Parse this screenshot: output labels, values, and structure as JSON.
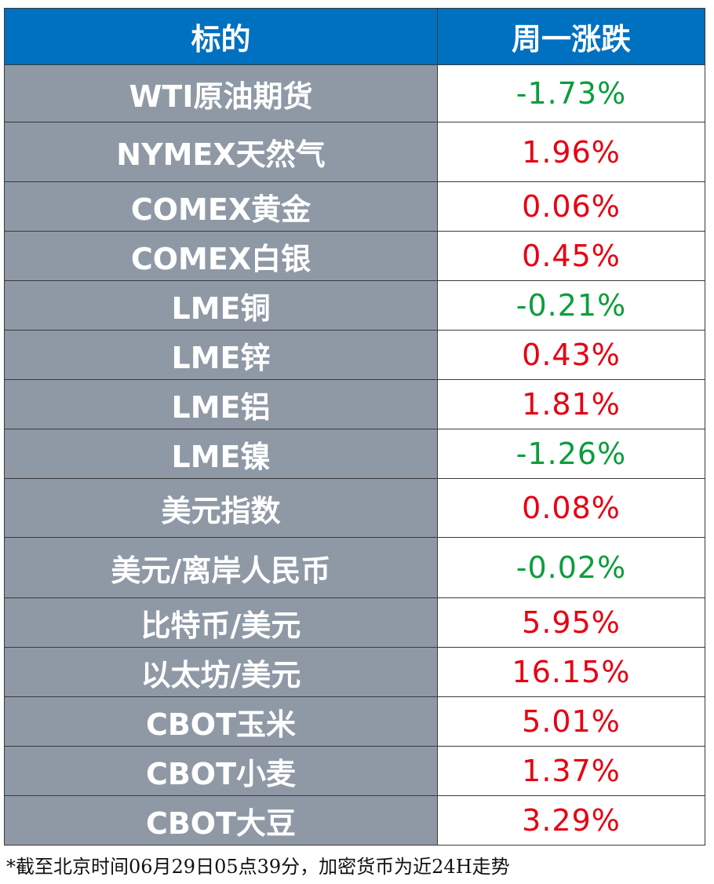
{
  "table": {
    "header": [
      "标的",
      "周一涨跌"
    ],
    "rows": [
      [
        "WTI原油期货",
        "-1.73%"
      ],
      [
        "NYMEX天然气",
        "1.96%"
      ],
      [
        "COMEX黄金",
        "0.06%"
      ],
      [
        "COMEX白银",
        "0.45%"
      ],
      [
        "LME铜",
        "-0.21%"
      ],
      [
        "LME锌",
        "0.43%"
      ],
      [
        "LME铝",
        "1.81%"
      ],
      [
        "LME镍",
        "-1.26%"
      ],
      [
        "美元指数",
        "0.08%"
      ],
      [
        "美元/离岸人民币",
        "-0.02%"
      ],
      [
        "比特币/美元",
        "5.95%"
      ],
      [
        "以太坊/美元",
        "16.15%"
      ],
      [
        "CBOT玉米",
        "5.01%"
      ],
      [
        "CBOT小麦",
        "1.37%"
      ],
      [
        "CBOT大豆",
        "3.29%"
      ]
    ]
  },
  "footnote": "*截至北京时间06月29日05点39分，加密货币为近24H走势"
}
